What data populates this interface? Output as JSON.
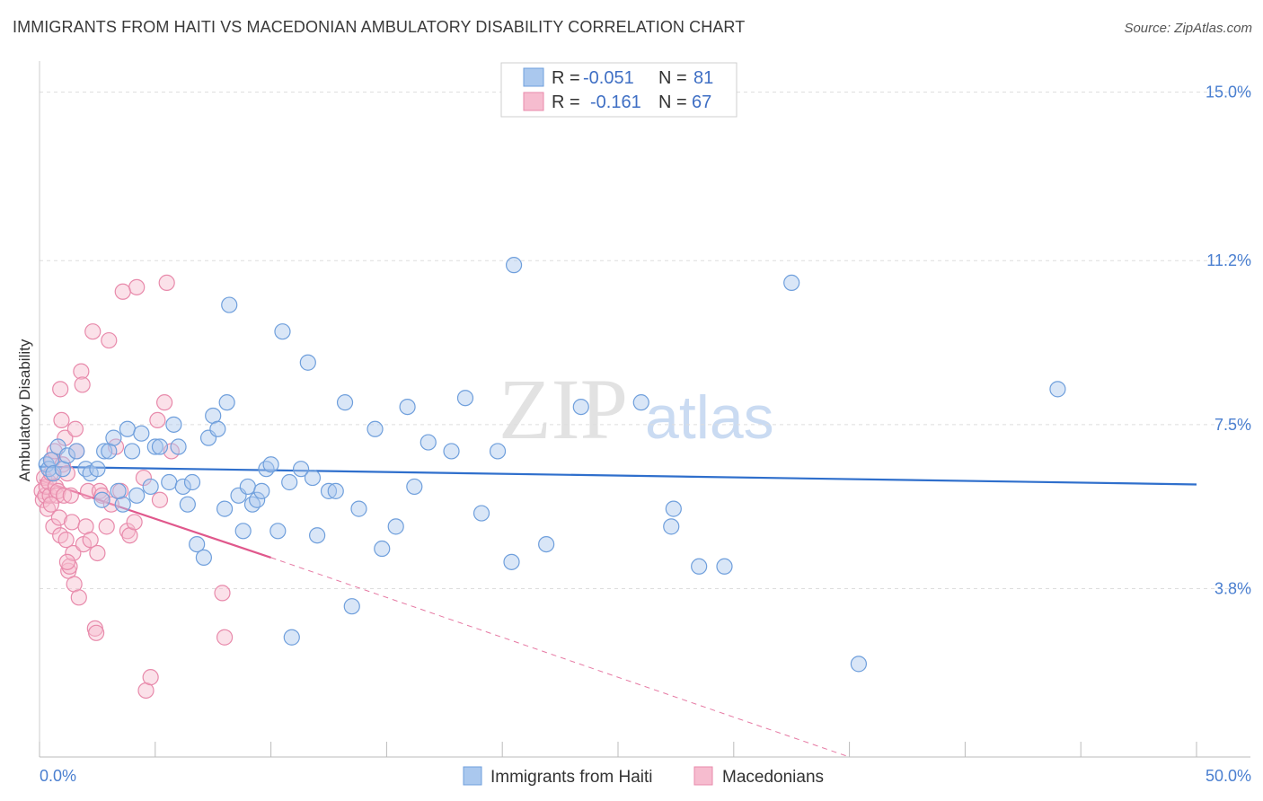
{
  "header": {
    "title": "IMMIGRANTS FROM HAITI VS MACEDONIAN AMBULATORY DISABILITY CORRELATION CHART",
    "source": "Source: ZipAtlas.com"
  },
  "watermark": {
    "zip": "ZIP",
    "atlas": "atlas"
  },
  "colors": {
    "blue_fill": "#aac8ee",
    "blue_stroke": "#6f9fdc",
    "blue_line": "#2f6fcc",
    "pink_fill": "#f6bccf",
    "pink_stroke": "#e88aab",
    "pink_line": "#e0588c",
    "accent_text": "#3f6fc4"
  },
  "legend": {
    "rows": [
      {
        "r_label": "R =",
        "r_value": "-0.051",
        "n_label": "N =",
        "n_value": "81"
      },
      {
        "r_label": "R =",
        "r_value": "-0.161",
        "n_label": "N =",
        "n_value": "67"
      }
    ]
  },
  "bottom_legend": {
    "items": [
      {
        "label": "Immigrants from Haiti"
      },
      {
        "label": "Macedonians"
      }
    ]
  },
  "chart_data": {
    "type": "scatter",
    "title": "IMMIGRANTS FROM HAITI VS MACEDONIAN AMBULATORY DISABILITY CORRELATION CHART",
    "xlabel": "",
    "ylabel": "Ambulatory Disability",
    "xlim": [
      0,
      50
    ],
    "ylim": [
      0,
      15.5
    ],
    "x_tick_labels": {
      "min": "0.0%",
      "max": "50.0%"
    },
    "y_ticks": [
      {
        "value": 3.8,
        "label": "3.8%"
      },
      {
        "value": 7.5,
        "label": "7.5%"
      },
      {
        "value": 11.2,
        "label": "11.2%"
      },
      {
        "value": 15.0,
        "label": "15.0%"
      }
    ],
    "grid": true,
    "series": [
      {
        "name": "Immigrants from Haiti",
        "r": -0.051,
        "n": 81,
        "trend": {
          "x": [
            0,
            50
          ],
          "y": [
            6.55,
            6.15
          ],
          "dashed_extension": false
        },
        "points": [
          [
            0.3,
            6.6
          ],
          [
            0.4,
            6.5
          ],
          [
            0.5,
            6.7
          ],
          [
            0.6,
            6.4
          ],
          [
            0.8,
            7.0
          ],
          [
            1.0,
            6.5
          ],
          [
            1.2,
            6.8
          ],
          [
            1.6,
            6.9
          ],
          [
            2.0,
            6.5
          ],
          [
            2.2,
            6.4
          ],
          [
            2.5,
            6.5
          ],
          [
            2.8,
            6.9
          ],
          [
            3.0,
            6.9
          ],
          [
            3.2,
            7.2
          ],
          [
            3.6,
            5.7
          ],
          [
            3.8,
            7.4
          ],
          [
            4.0,
            6.9
          ],
          [
            4.2,
            5.9
          ],
          [
            4.4,
            7.3
          ],
          [
            4.8,
            6.1
          ],
          [
            5.0,
            7.0
          ],
          [
            5.2,
            7.0
          ],
          [
            5.6,
            6.2
          ],
          [
            5.8,
            7.5
          ],
          [
            6.0,
            7.0
          ],
          [
            6.2,
            6.1
          ],
          [
            6.4,
            5.7
          ],
          [
            6.6,
            6.2
          ],
          [
            6.8,
            4.8
          ],
          [
            7.1,
            4.5
          ],
          [
            7.3,
            7.2
          ],
          [
            7.5,
            7.7
          ],
          [
            7.7,
            7.4
          ],
          [
            8.0,
            5.6
          ],
          [
            8.1,
            8.0
          ],
          [
            8.2,
            10.2
          ],
          [
            8.6,
            5.9
          ],
          [
            8.8,
            5.1
          ],
          [
            9.0,
            6.1
          ],
          [
            9.2,
            5.7
          ],
          [
            9.4,
            5.8
          ],
          [
            9.6,
            6.0
          ],
          [
            9.8,
            6.5
          ],
          [
            10.0,
            6.6
          ],
          [
            10.3,
            5.1
          ],
          [
            10.5,
            9.6
          ],
          [
            10.8,
            6.2
          ],
          [
            10.9,
            2.7
          ],
          [
            11.3,
            6.5
          ],
          [
            11.6,
            8.9
          ],
          [
            11.8,
            6.3
          ],
          [
            12.0,
            5.0
          ],
          [
            12.5,
            6.0
          ],
          [
            12.8,
            6.0
          ],
          [
            13.2,
            8.0
          ],
          [
            13.5,
            3.4
          ],
          [
            13.8,
            5.6
          ],
          [
            14.5,
            7.4
          ],
          [
            14.8,
            4.7
          ],
          [
            15.4,
            5.2
          ],
          [
            15.9,
            7.9
          ],
          [
            16.2,
            6.1
          ],
          [
            16.8,
            7.1
          ],
          [
            17.8,
            6.9
          ],
          [
            18.4,
            8.1
          ],
          [
            19.1,
            5.5
          ],
          [
            19.8,
            6.9
          ],
          [
            20.4,
            4.4
          ],
          [
            20.5,
            11.1
          ],
          [
            21.9,
            4.8
          ],
          [
            23.4,
            7.9
          ],
          [
            26.0,
            8.0
          ],
          [
            27.3,
            5.2
          ],
          [
            27.4,
            5.6
          ],
          [
            28.5,
            4.3
          ],
          [
            29.6,
            4.3
          ],
          [
            32.5,
            10.7
          ],
          [
            35.4,
            2.1
          ],
          [
            44.0,
            8.3
          ],
          [
            2.7,
            5.8
          ],
          [
            3.4,
            6.0
          ]
        ]
      },
      {
        "name": "Macedonians",
        "r": -0.161,
        "n": 67,
        "trend": {
          "x": [
            0,
            10
          ],
          "y": [
            6.25,
            4.5
          ],
          "dashed_to": [
            35,
            0
          ]
        },
        "points": [
          [
            0.1,
            6.0
          ],
          [
            0.15,
            5.8
          ],
          [
            0.2,
            6.3
          ],
          [
            0.25,
            5.9
          ],
          [
            0.3,
            6.1
          ],
          [
            0.35,
            5.6
          ],
          [
            0.4,
            6.2
          ],
          [
            0.45,
            5.9
          ],
          [
            0.5,
            6.4
          ],
          [
            0.55,
            6.7
          ],
          [
            0.6,
            5.2
          ],
          [
            0.65,
            6.9
          ],
          [
            0.7,
            6.1
          ],
          [
            0.75,
            5.9
          ],
          [
            0.8,
            6.0
          ],
          [
            0.85,
            5.4
          ],
          [
            0.9,
            5.0
          ],
          [
            0.95,
            7.6
          ],
          [
            1.0,
            6.6
          ],
          [
            1.05,
            5.9
          ],
          [
            1.1,
            7.2
          ],
          [
            1.15,
            4.9
          ],
          [
            1.2,
            6.4
          ],
          [
            1.25,
            4.2
          ],
          [
            1.3,
            4.3
          ],
          [
            1.35,
            5.9
          ],
          [
            1.4,
            5.3
          ],
          [
            1.45,
            4.6
          ],
          [
            1.5,
            3.9
          ],
          [
            1.55,
            7.4
          ],
          [
            1.6,
            6.9
          ],
          [
            1.7,
            3.6
          ],
          [
            1.8,
            8.7
          ],
          [
            1.85,
            8.4
          ],
          [
            1.9,
            4.8
          ],
          [
            2.0,
            5.2
          ],
          [
            2.1,
            6.0
          ],
          [
            2.2,
            4.9
          ],
          [
            2.3,
            9.6
          ],
          [
            2.4,
            2.9
          ],
          [
            2.45,
            2.8
          ],
          [
            2.5,
            4.6
          ],
          [
            2.6,
            6.0
          ],
          [
            2.7,
            5.9
          ],
          [
            2.9,
            5.2
          ],
          [
            3.0,
            9.4
          ],
          [
            3.1,
            5.7
          ],
          [
            3.3,
            7.0
          ],
          [
            3.5,
            6.0
          ],
          [
            3.8,
            5.1
          ],
          [
            3.9,
            5.0
          ],
          [
            4.1,
            5.3
          ],
          [
            4.2,
            10.6
          ],
          [
            4.5,
            6.3
          ],
          [
            4.6,
            1.5
          ],
          [
            4.8,
            1.8
          ],
          [
            5.1,
            7.6
          ],
          [
            5.2,
            5.8
          ],
          [
            5.4,
            8.0
          ],
          [
            5.5,
            10.7
          ],
          [
            5.7,
            6.9
          ],
          [
            7.9,
            3.7
          ],
          [
            8.0,
            2.7
          ],
          [
            0.9,
            8.3
          ],
          [
            3.6,
            10.5
          ],
          [
            1.2,
            4.4
          ],
          [
            0.5,
            5.7
          ]
        ]
      }
    ]
  }
}
